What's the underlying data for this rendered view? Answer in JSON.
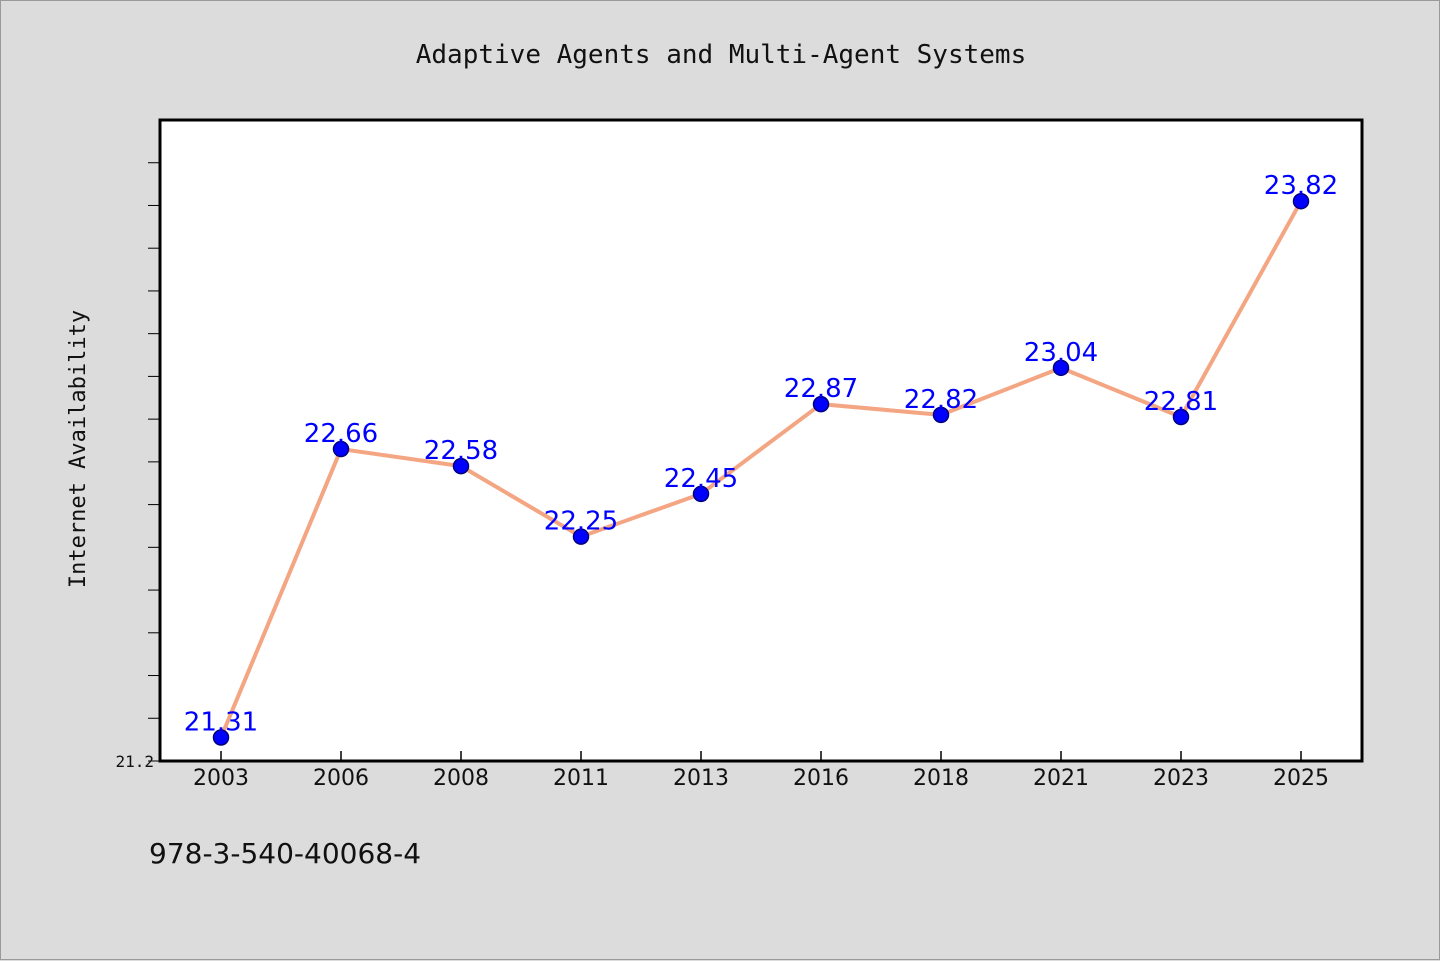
{
  "chart_data": {
    "type": "line",
    "title": "Adaptive Agents and Multi-Agent Systems",
    "ylabel": "Internet Availability",
    "xlabel": "",
    "categories": [
      "2003",
      "2006",
      "2008",
      "2011",
      "2013",
      "2016",
      "2018",
      "2021",
      "2023",
      "2025"
    ],
    "series": [
      {
        "values": [
          21.31,
          22.66,
          22.58,
          22.25,
          22.45,
          22.87,
          22.82,
          23.04,
          22.81,
          23.82
        ]
      }
    ],
    "data_labels": [
      "21.31",
      "22.66",
      "22.58",
      "22.25",
      "22.45",
      "22.87",
      "22.82",
      "23.04",
      "22.81",
      "23.82"
    ],
    "ylim": [
      21.2,
      24.2
    ],
    "ytick_labels": [
      "21.2"
    ],
    "grid": false,
    "colors": {
      "line": "#f4a582",
      "marker": "#0000ff",
      "label": "#0000ff",
      "plot_bg": "#ffffff",
      "page_bg": "#dcdcdc"
    }
  },
  "footnote": "978-3-540-40068-4"
}
